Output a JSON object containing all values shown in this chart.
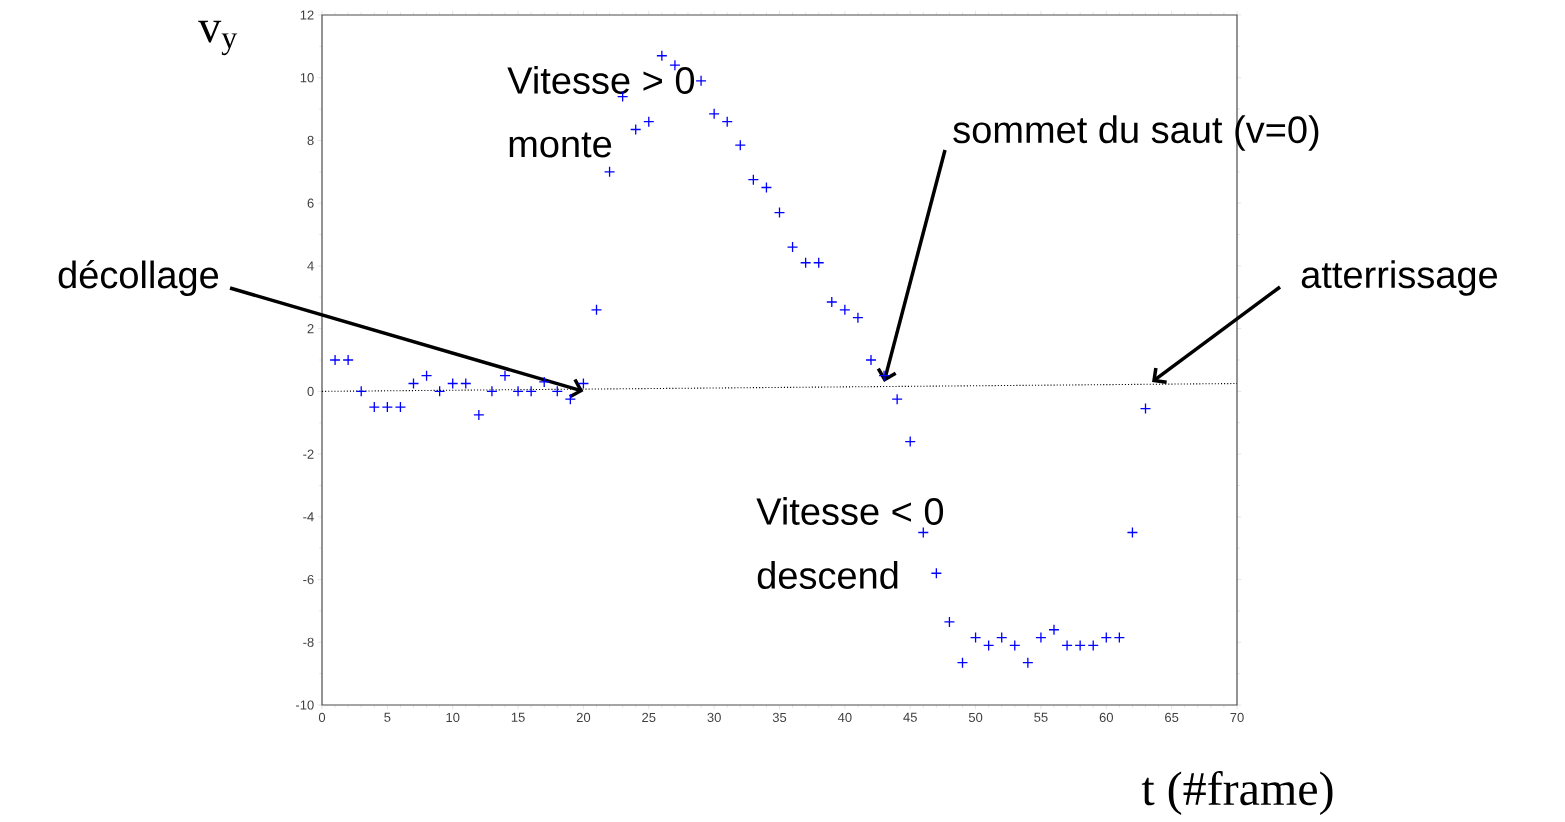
{
  "chart_data": {
    "type": "scatter",
    "xlabel": "t (#frame)",
    "ylabel": "v$_{y}$",
    "xlim": [
      0,
      70
    ],
    "xticks": [
      0,
      5,
      10,
      15,
      20,
      25,
      30,
      35,
      40,
      45,
      50,
      55,
      60,
      65,
      70
    ],
    "ylim": [
      -10,
      12
    ],
    "yticks": [
      -10,
      -8,
      -6,
      -4,
      -2,
      0,
      2,
      4,
      6,
      8,
      10,
      12
    ],
    "series": [
      {
        "type": "scatter",
        "marker": "cross",
        "color": "#0000ff",
        "x": [
          1,
          2,
          3,
          4,
          5,
          6,
          7,
          8,
          9,
          10,
          11,
          12,
          13,
          14,
          15,
          16,
          17,
          18,
          19,
          20,
          21,
          22,
          23,
          24,
          25,
          26,
          27,
          28,
          29,
          30,
          31,
          32,
          33,
          34,
          35,
          36,
          37,
          38,
          39,
          40,
          41,
          42,
          43,
          44,
          45,
          46,
          47,
          48,
          49,
          50,
          51,
          52,
          53,
          54,
          55,
          56,
          57,
          58,
          59,
          60,
          61,
          62,
          63
        ],
        "values": [
          1.0,
          1.0,
          0,
          -0.5,
          -0.5,
          -0.5,
          0.25,
          0.5,
          0,
          0.25,
          0.25,
          -0.75,
          0,
          0.5,
          0,
          0,
          0.3,
          0,
          -0.25,
          0.25,
          2.6,
          7.0,
          9.4,
          8.35,
          8.6,
          10.7,
          10.4,
          null,
          9.9,
          8.85,
          8.6,
          7.85,
          6.75,
          6.5,
          5.7,
          4.6,
          4.1,
          4.1,
          2.85,
          2.6,
          2.35,
          1.0,
          0.5,
          -0.25,
          -1.6,
          -4.5,
          -5.8,
          -7.35,
          -8.65,
          -7.85,
          -8.1,
          -7.85,
          -8.1,
          -8.65,
          -7.85,
          -7.6,
          -8.1,
          -8.1,
          -8.1,
          -7.85,
          -7.85,
          -4.5,
          -0.55
        ]
      },
      {
        "type": "line",
        "line_style": "dotted",
        "color": "#000000",
        "x": [
          0,
          70
        ],
        "values": [
          0,
          0.25
        ]
      }
    ],
    "annotations": [
      "Vitesse > 0",
      "monte",
      "Vitesse < 0",
      "descend",
      {
        "text": "décollage",
        "x": 20,
        "y": 0
      },
      {
        "text": "sommet du saut (v=0)",
        "x": 43,
        "y": 0.3
      },
      {
        "text": "atterrissage",
        "x": 63.5,
        "y": 0.3
      }
    ]
  }
}
